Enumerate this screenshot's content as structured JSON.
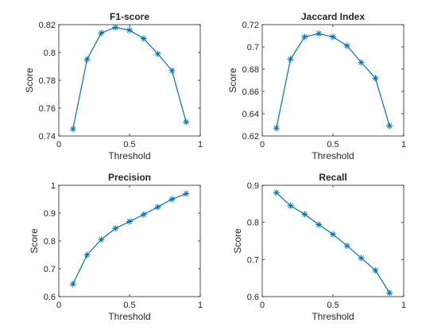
{
  "figure": {
    "background": "#ffffff",
    "line_color": "#0072BD"
  },
  "chart_data": [
    {
      "type": "line",
      "title": "F1-score",
      "xlabel": "Threshold",
      "ylabel": "Score",
      "xlim": [
        0,
        1
      ],
      "ylim": [
        0.74,
        0.82
      ],
      "xticks": [
        0,
        0.5,
        1
      ],
      "xtick_labels": [
        "0",
        "0.5",
        "1"
      ],
      "yticks": [
        0.74,
        0.76,
        0.78,
        0.8,
        0.82
      ],
      "ytick_labels": [
        "0.74",
        "0.76",
        "0.78",
        "0.8",
        "0.82"
      ],
      "marker": "asterisk",
      "series": [
        {
          "x": [
            0.1,
            0.2,
            0.3,
            0.4,
            0.5,
            0.6,
            0.7,
            0.8,
            0.9
          ],
          "y": [
            0.745,
            0.795,
            0.814,
            0.818,
            0.816,
            0.81,
            0.799,
            0.787,
            0.75
          ]
        }
      ]
    },
    {
      "type": "line",
      "title": "Jaccard Index",
      "xlabel": "Threshold",
      "ylabel": "Score",
      "xlim": [
        0,
        1
      ],
      "ylim": [
        0.62,
        0.72
      ],
      "xticks": [
        0,
        0.5,
        1
      ],
      "xtick_labels": [
        "0",
        "0.5",
        "1"
      ],
      "yticks": [
        0.62,
        0.64,
        0.66,
        0.68,
        0.7,
        0.72
      ],
      "ytick_labels": [
        "0.62",
        "0.64",
        "0.66",
        "0.68",
        "0.7",
        "0.72"
      ],
      "marker": "asterisk",
      "series": [
        {
          "x": [
            0.1,
            0.2,
            0.3,
            0.4,
            0.5,
            0.6,
            0.7,
            0.8,
            0.9
          ],
          "y": [
            0.627,
            0.689,
            0.709,
            0.712,
            0.709,
            0.701,
            0.686,
            0.672,
            0.629
          ]
        }
      ]
    },
    {
      "type": "line",
      "title": "Precision",
      "xlabel": "Threshold",
      "ylabel": "Score",
      "xlim": [
        0,
        1
      ],
      "ylim": [
        0.6,
        1
      ],
      "xticks": [
        0,
        0.5,
        1
      ],
      "xtick_labels": [
        "0",
        "0.5",
        "1"
      ],
      "yticks": [
        0.6,
        0.7,
        0.8,
        0.9,
        1
      ],
      "ytick_labels": [
        "0.6",
        "0.7",
        "0.8",
        "0.9",
        "1"
      ],
      "marker": "asterisk",
      "series": [
        {
          "x": [
            0.1,
            0.2,
            0.3,
            0.4,
            0.5,
            0.6,
            0.7,
            0.8,
            0.9
          ],
          "y": [
            0.645,
            0.75,
            0.805,
            0.845,
            0.87,
            0.895,
            0.922,
            0.95,
            0.97
          ]
        }
      ]
    },
    {
      "type": "line",
      "title": "Recall",
      "xlabel": "Threshold",
      "ylabel": "Score",
      "xlim": [
        0,
        1
      ],
      "ylim": [
        0.6,
        0.9
      ],
      "xticks": [
        0,
        0.5,
        1
      ],
      "xtick_labels": [
        "0",
        "0.5",
        "1"
      ],
      "yticks": [
        0.6,
        0.7,
        0.8,
        0.9
      ],
      "ytick_labels": [
        "0.6",
        "0.7",
        "0.8",
        "0.9"
      ],
      "marker": "asterisk",
      "series": [
        {
          "x": [
            0.1,
            0.2,
            0.3,
            0.4,
            0.5,
            0.6,
            0.7,
            0.8,
            0.9
          ],
          "y": [
            0.88,
            0.845,
            0.822,
            0.794,
            0.768,
            0.737,
            0.704,
            0.671,
            0.61
          ]
        }
      ]
    }
  ]
}
